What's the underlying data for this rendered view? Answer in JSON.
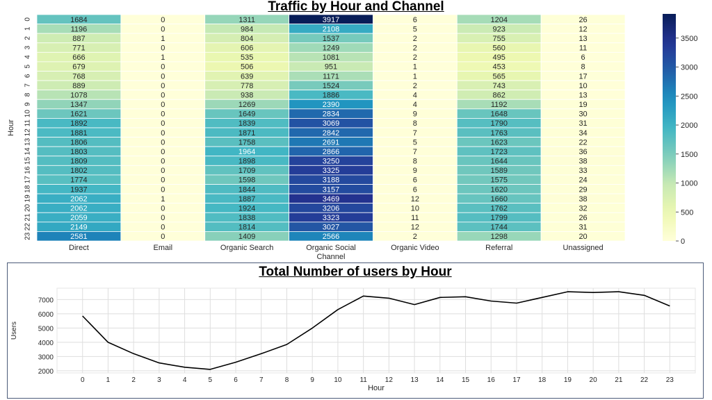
{
  "chart_data": [
    {
      "type": "heatmap",
      "title": "Traffic by Hour and Channel",
      "xlabel": "Channel",
      "ylabel": "Hour",
      "x_categories": [
        "Direct",
        "Email",
        "Organic Search",
        "Organic Social",
        "Organic Video",
        "Referral",
        "Unassigned"
      ],
      "y_categories": [
        "0",
        "1",
        "2",
        "3",
        "4",
        "5",
        "6",
        "7",
        "8",
        "9",
        "10",
        "11",
        "12",
        "13",
        "14",
        "15",
        "16",
        "17",
        "18",
        "19",
        "20",
        "21",
        "22",
        "23"
      ],
      "values": [
        [
          1684,
          0,
          1311,
          3917,
          6,
          1204,
          26
        ],
        [
          1196,
          0,
          984,
          2108,
          5,
          923,
          12
        ],
        [
          887,
          1,
          804,
          1537,
          2,
          755,
          13
        ],
        [
          771,
          0,
          606,
          1249,
          2,
          560,
          11
        ],
        [
          666,
          1,
          535,
          1081,
          2,
          495,
          6
        ],
        [
          679,
          0,
          506,
          951,
          1,
          453,
          8
        ],
        [
          768,
          0,
          639,
          1171,
          1,
          565,
          17
        ],
        [
          889,
          0,
          778,
          1524,
          2,
          743,
          10
        ],
        [
          1078,
          0,
          938,
          1886,
          4,
          862,
          13
        ],
        [
          1347,
          0,
          1269,
          2390,
          4,
          1192,
          19
        ],
        [
          1621,
          0,
          1649,
          2834,
          9,
          1648,
          30
        ],
        [
          1892,
          0,
          1839,
          3069,
          8,
          1790,
          31
        ],
        [
          1881,
          0,
          1871,
          2842,
          7,
          1763,
          34
        ],
        [
          1806,
          0,
          1758,
          2691,
          5,
          1623,
          22
        ],
        [
          1803,
          0,
          1964,
          2866,
          7,
          1723,
          36
        ],
        [
          1809,
          0,
          1898,
          3250,
          8,
          1644,
          38
        ],
        [
          1802,
          0,
          1709,
          3325,
          9,
          1589,
          33
        ],
        [
          1774,
          0,
          1598,
          3188,
          6,
          1575,
          24
        ],
        [
          1937,
          0,
          1844,
          3157,
          6,
          1620,
          29
        ],
        [
          2062,
          1,
          1887,
          3469,
          12,
          1660,
          38
        ],
        [
          2062,
          0,
          1924,
          3206,
          10,
          1762,
          32
        ],
        [
          2059,
          0,
          1838,
          3323,
          11,
          1799,
          26
        ],
        [
          2149,
          0,
          1814,
          3027,
          12,
          1744,
          31
        ],
        [
          2581,
          0,
          1409,
          2566,
          2,
          1298,
          20
        ]
      ],
      "colorbar": {
        "min": 0,
        "max": 3917,
        "ticks": [
          0,
          500,
          1000,
          1500,
          2000,
          2500,
          3000,
          3500
        ],
        "colormap": "YlGnBu"
      }
    },
    {
      "type": "line",
      "title": "Total Number of users by Hour",
      "xlabel": "Hour",
      "ylabel": "Users",
      "x": [
        0,
        1,
        2,
        3,
        4,
        5,
        6,
        7,
        8,
        9,
        10,
        11,
        12,
        13,
        14,
        15,
        16,
        17,
        18,
        19,
        20,
        21,
        22,
        23
      ],
      "series": [
        {
          "values": [
            5850,
            4000,
            3200,
            2550,
            2250,
            2100,
            2600,
            3200,
            3850,
            5000,
            6300,
            7250,
            7100,
            6650,
            7150,
            7200,
            6900,
            6750,
            7150,
            7550,
            7500,
            7550,
            7300,
            6550
          ]
        }
      ],
      "x_ticks": [
        0,
        1,
        2,
        3,
        4,
        5,
        6,
        7,
        8,
        9,
        10,
        11,
        12,
        13,
        14,
        15,
        16,
        17,
        18,
        19,
        20,
        21,
        22,
        23
      ],
      "y_ticks": [
        2000,
        3000,
        4000,
        5000,
        6000,
        7000
      ],
      "xlim": [
        -1,
        24
      ],
      "ylim": [
        1850,
        7800
      ],
      "grid": true,
      "line_color": "#000000"
    }
  ]
}
